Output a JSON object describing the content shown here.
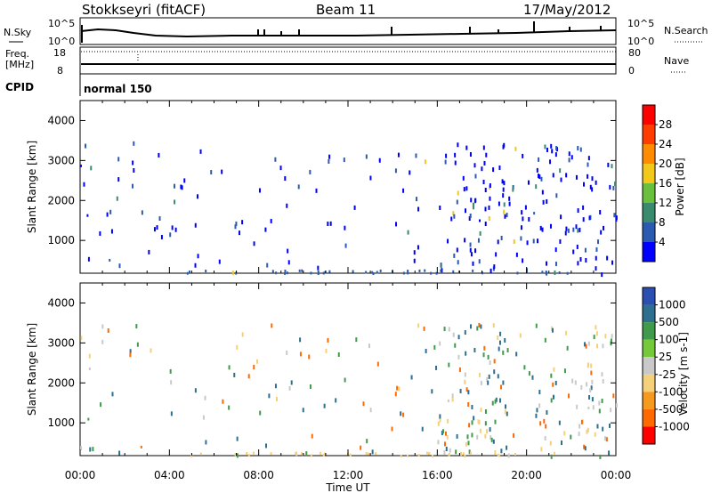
{
  "header": {
    "station": "Stokkseyri (fitACF)",
    "beam": "Beam 11",
    "date": "17/May/2012"
  },
  "status_panel": {
    "nsky_label": "N.Sky",
    "nsky_ticks": [
      "10^5",
      "10^0"
    ],
    "nsearch_label": "N.Search",
    "nsearch_ticks": [
      "10^5",
      "10^0"
    ],
    "freq_label_1": "Freq.",
    "freq_label_2": "[MHz]",
    "freq_ticks": [
      "18",
      "8"
    ],
    "nave_label": "Nave",
    "nave_ticks": [
      "80",
      "0"
    ],
    "cpid_label": "CPID",
    "cpid_value": "normal 150"
  },
  "chart_data": [
    {
      "type": "heatmap",
      "name": "power",
      "ylabel": "Slant Range [km]",
      "yticks": [
        "1000",
        "2000",
        "3000",
        "4000"
      ],
      "ylim": [
        180,
        4500
      ],
      "xlim": [
        0,
        24
      ],
      "colorbar_label": "Power [dB]",
      "colorbar_ticks": [
        "4",
        "8",
        "12",
        "16",
        "20",
        "24",
        "28"
      ],
      "colors": [
        "#0000ff",
        "#2a5bb0",
        "#3a8a6e",
        "#6ac03c",
        "#f2c81a",
        "#ff8c00",
        "#ff3d00",
        "#ff0000"
      ],
      "regions": [
        {
          "t": [
            0.0,
            2.6
          ],
          "r": [
            2300,
            2950
          ],
          "level": "low"
        },
        {
          "t": [
            0.0,
            1.4
          ],
          "r": [
            1000,
            1900
          ],
          "level": "low"
        },
        {
          "t": [
            0.0,
            3.9
          ],
          "r": [
            200,
            650
          ],
          "level": "low"
        },
        {
          "t": [
            15.9,
            24.0
          ],
          "r": [
            1450,
            1800
          ],
          "level": "low"
        },
        {
          "t": [
            22.3,
            24.0
          ],
          "r": [
            750,
            1050
          ],
          "level": "mid"
        }
      ]
    },
    {
      "type": "heatmap",
      "name": "velocity",
      "ylabel": "Slant Range [km]",
      "yticks": [
        "1000",
        "2000",
        "3000",
        "4000"
      ],
      "ylim": [
        180,
        4500
      ],
      "xlim": [
        0,
        24
      ],
      "xticks": [
        "00:00",
        "04:00",
        "08:00",
        "12:00",
        "16:00",
        "20:00",
        "00:00"
      ],
      "xlabel": "Time UT",
      "colorbar_label": "Velocity [m s-1]",
      "colorbar_ticks": [
        "1000",
        "500",
        "100",
        "25",
        "-25",
        "-100",
        "-500",
        "-1000"
      ],
      "colors": [
        "#2a4fb0",
        "#2e6e8e",
        "#3f9a4c",
        "#74c83a",
        "#c9c9c9",
        "#f5d07a",
        "#f59a1e",
        "#ff6a00",
        "#ff0000"
      ],
      "regions": [
        {
          "t": [
            0.0,
            2.6
          ],
          "r": [
            2300,
            2950
          ],
          "level": "ground"
        },
        {
          "t": [
            0.0,
            1.4
          ],
          "r": [
            1000,
            1900
          ],
          "level": "positive"
        },
        {
          "t": [
            0.0,
            3.9
          ],
          "r": [
            200,
            650
          ],
          "level": "mixed"
        },
        {
          "t": [
            15.9,
            24.0
          ],
          "r": [
            1450,
            1800
          ],
          "level": "ground"
        },
        {
          "t": [
            22.3,
            24.0
          ],
          "r": [
            750,
            1050
          ],
          "level": "negative"
        }
      ]
    }
  ]
}
